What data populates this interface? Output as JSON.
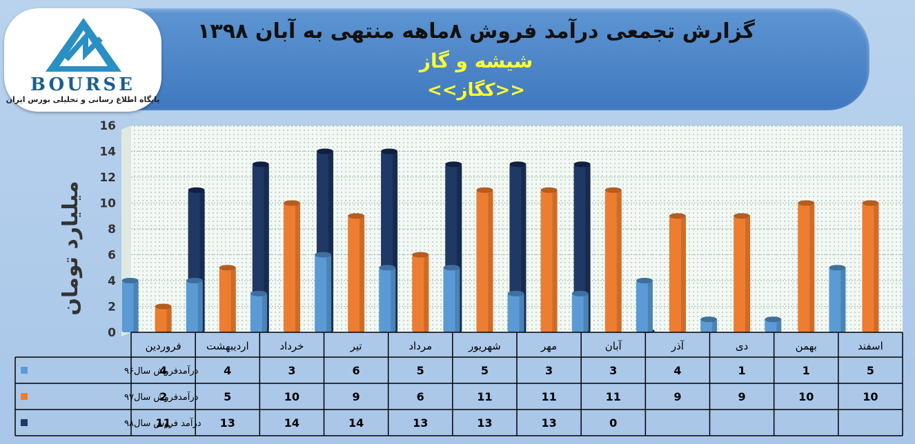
{
  "title": {
    "line1": "گزارش تجمعی درآمد فروش ۸ماهه منتهی به آبان ۱۳۹۸",
    "line2": "شیشه و گاز",
    "line3": "<<کگاز>>"
  },
  "logo": {
    "name": "BOURSE",
    "subtitle": "پایگاه اطلاع رسانی و تحلیلی بورس ایران"
  },
  "colors": {
    "series96": "#5b9bd5",
    "series97": "#ed7d31",
    "series98": "#1f3864"
  },
  "chart_data": {
    "type": "bar",
    "title": "گزارش تجمعی درآمد فروش ۸ماهه منتهی به آبان ۱۳۹۸",
    "ylabel": "میلیارد تومان",
    "xlabel": "",
    "ylim": [
      0,
      16
    ],
    "yticks": [
      0,
      2,
      4,
      6,
      8,
      10,
      12,
      14,
      16
    ],
    "grid": true,
    "legend": "table-left",
    "categories": [
      "فروردین",
      "اردیبهشت",
      "خرداد",
      "تیر",
      "مرداد",
      "شهریور",
      "مهر",
      "آبان",
      "آذر",
      "دی",
      "بهمن",
      "اسفند"
    ],
    "series": [
      {
        "name": "درآمدفروش سال۹۶",
        "values": [
          4,
          4,
          3,
          6,
          5,
          5,
          3,
          3,
          4,
          1,
          1,
          5
        ]
      },
      {
        "name": "درآمدفروش سال۹۷",
        "values": [
          2,
          5,
          10,
          9,
          6,
          11,
          11,
          11,
          9,
          9,
          10,
          10
        ]
      },
      {
        "name": "درآمد فروش سال۹۸",
        "values": [
          11,
          13,
          14,
          14,
          13,
          13,
          13,
          0,
          null,
          null,
          null,
          null
        ]
      }
    ]
  }
}
